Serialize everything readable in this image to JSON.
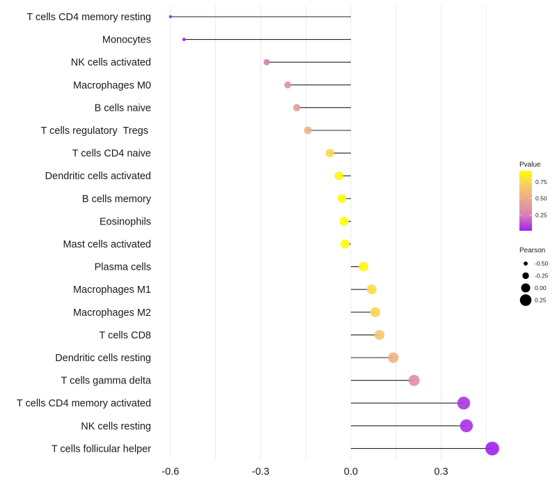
{
  "chart_data": {
    "type": "lollipop",
    "title": "",
    "xlabel": "",
    "ylabel": "",
    "xlim": [
      -0.62,
      0.52
    ],
    "xticks": [
      -0.6,
      -0.3,
      0.0,
      0.3
    ],
    "xtick_labels": [
      "-0.6",
      "-0.3",
      "0.0",
      "0.3"
    ],
    "grid": true,
    "categories": [
      "T cells CD4 memory resting",
      "Monocytes",
      "NK cells activated",
      "Macrophages M0",
      "B cells naive",
      "T cells regulatory  Tregs ",
      "T cells CD4 naive",
      "Dendritic cells activated",
      "B cells memory",
      "Eosinophils",
      "Mast cells activated",
      "Plasma cells",
      "Macrophages M1",
      "Macrophages M2",
      "T cells CD8",
      "Dendritic cells resting",
      "T cells gamma delta",
      "T cells CD4 memory activated",
      "NK cells resting",
      "T cells follicular helper"
    ],
    "pearson": [
      -0.6,
      -0.555,
      -0.28,
      -0.21,
      -0.18,
      -0.143,
      -0.07,
      -0.04,
      -0.03,
      -0.023,
      -0.02,
      0.042,
      0.069,
      0.081,
      0.095,
      0.141,
      0.21,
      0.375,
      0.384,
      0.47
    ],
    "pvalue": [
      0.01,
      0.02,
      0.25,
      0.35,
      0.42,
      0.55,
      0.75,
      0.88,
      0.9,
      0.92,
      0.92,
      0.88,
      0.78,
      0.74,
      0.68,
      0.55,
      0.35,
      0.06,
      0.05,
      0.01
    ],
    "legend": {
      "color": {
        "title": "Pvalue",
        "ticks": [
          0.25,
          0.5,
          0.75
        ],
        "tick_labels": [
          "0.25",
          "0.50",
          "0.75"
        ],
        "range": [
          0.01,
          0.92
        ],
        "colors": [
          "#A020F0",
          "#D77CB5",
          "#E8A593",
          "#F7C96A",
          "#FFFF00"
        ]
      },
      "size": {
        "title": "Pearson",
        "values": [
          -0.5,
          -0.25,
          0.0,
          0.25
        ],
        "labels": [
          "-0.50",
          "-0.25",
          "0.00",
          "0.25"
        ]
      },
      "placement": "right"
    }
  }
}
